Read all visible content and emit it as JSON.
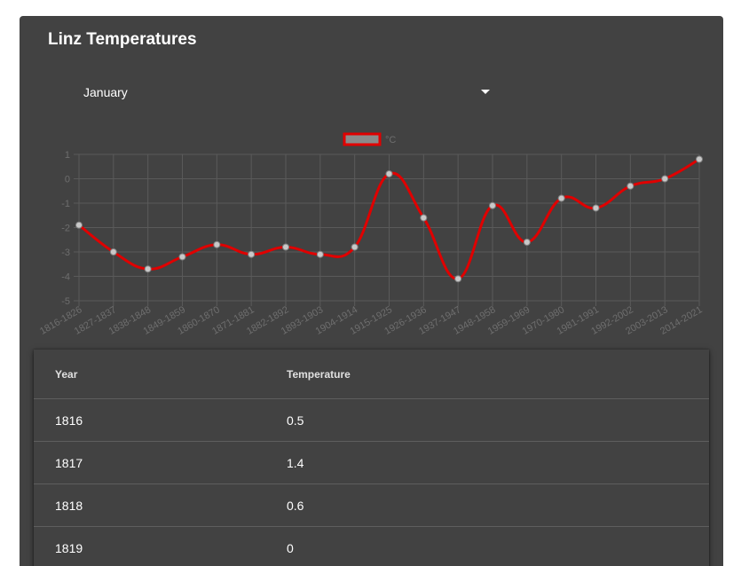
{
  "header": {
    "title": "Linz Temperatures"
  },
  "month_select": {
    "value": "January"
  },
  "chart_data": {
    "type": "line",
    "categories": [
      "1816-1826",
      "1827-1837",
      "1838-1848",
      "1849-1859",
      "1860-1870",
      "1871-1881",
      "1882-1892",
      "1893-1903",
      "1904-1914",
      "1915-1925",
      "1926-1936",
      "1937-1947",
      "1948-1958",
      "1959-1969",
      "1970-1980",
      "1981-1991",
      "1992-2002",
      "2003-2013",
      "2014-2021"
    ],
    "series": [
      {
        "name": "°C",
        "color": "#e00000",
        "values": [
          -1.9,
          -3.0,
          -3.7,
          -3.2,
          -2.7,
          -3.1,
          -2.8,
          -3.1,
          -2.8,
          0.2,
          -1.6,
          -4.1,
          -1.1,
          -2.6,
          -0.8,
          -1.2,
          -0.3,
          0.0,
          0.8
        ]
      }
    ],
    "ylim": [
      -5,
      1
    ],
    "yticks": [
      1,
      0,
      -1,
      -2,
      -3,
      -4,
      -5
    ],
    "grid": true,
    "legend": "top-center",
    "smooth": true
  },
  "table": {
    "columns": [
      "Year",
      "Temperature"
    ],
    "rows": [
      [
        "1816",
        "0.5"
      ],
      [
        "1817",
        "1.4"
      ],
      [
        "1818",
        "0.6"
      ],
      [
        "1819",
        "0"
      ]
    ]
  }
}
